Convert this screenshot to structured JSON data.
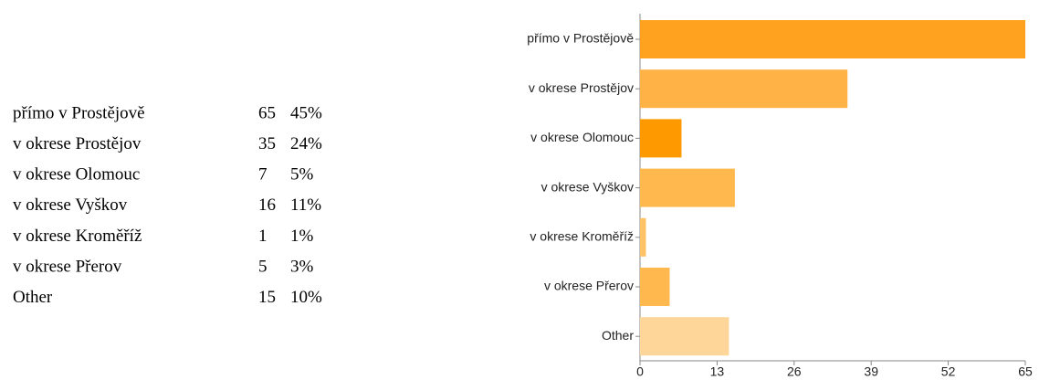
{
  "chart_data": {
    "type": "bar",
    "categories": [
      "přímo v Prostějově",
      "v okrese Prostějov",
      "v okrese Olomouc",
      "v okrese Vyškov",
      "v okrese Kroměříž",
      "v okrese Přerov",
      "Other"
    ],
    "values": [
      65,
      35,
      7,
      16,
      1,
      5,
      15
    ],
    "percents": [
      "45%",
      "24%",
      "5%",
      "11%",
      "1%",
      "3%",
      "10%"
    ],
    "colors": [
      "#ffa21f",
      "#ffb347",
      "#ff9900",
      "#ffb84d",
      "#ffc266",
      "#ffb84d",
      "#ffd699"
    ],
    "xlim": [
      0,
      65
    ],
    "xticks": [
      0,
      13,
      26,
      39,
      52,
      65
    ]
  }
}
